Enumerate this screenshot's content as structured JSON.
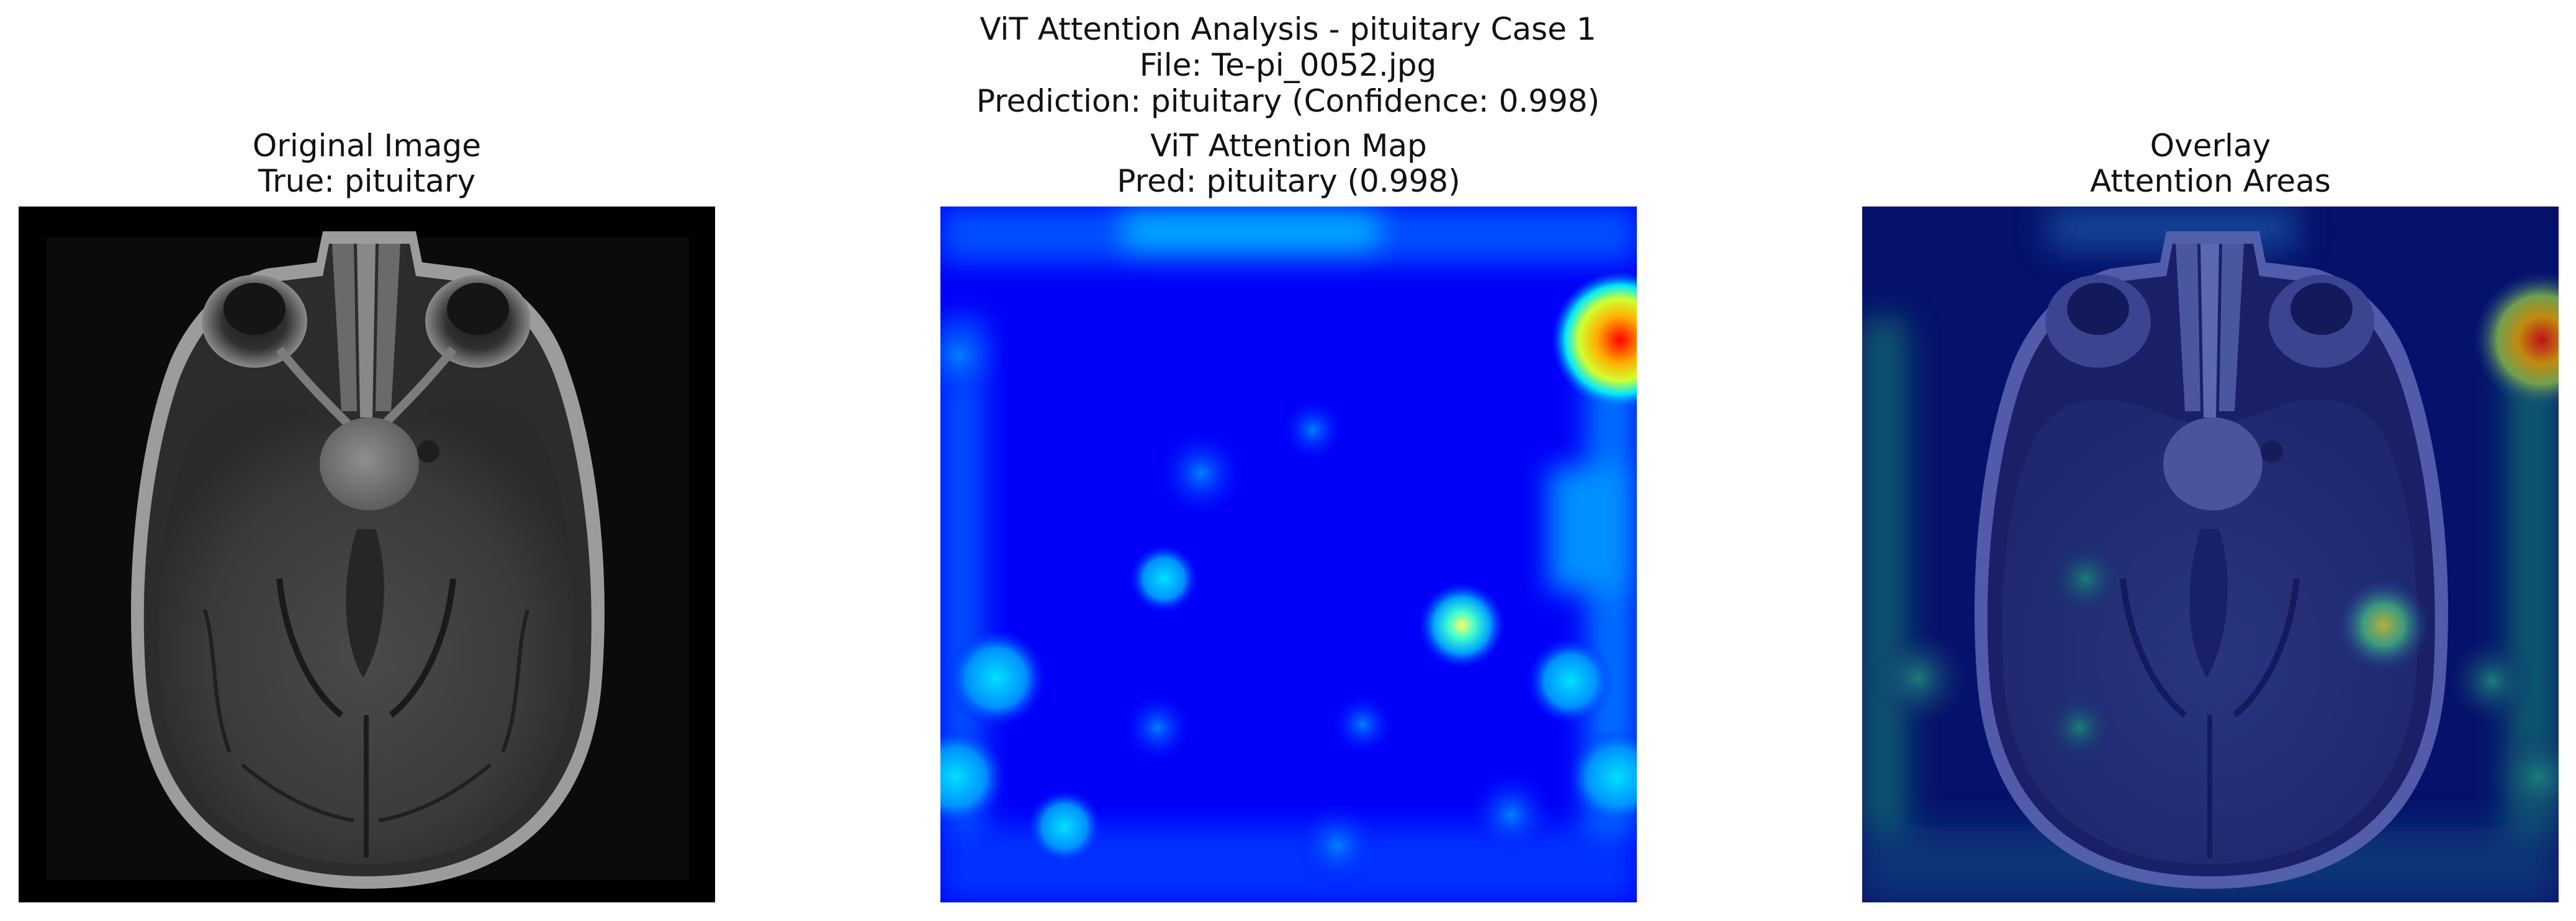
{
  "figure": {
    "title_line1": "ViT Attention Analysis - pituitary Case 1",
    "title_line2": "File: Te-pi_0052.jpg",
    "title_line3": "Prediction: pituitary (Confidence: 0.998)"
  },
  "panels": [
    {
      "title_line1": "Original Image",
      "title_line2": "True: pituitary"
    },
    {
      "title_line1": "ViT Attention Map",
      "title_line2": "Pred: pituitary (0.998)"
    },
    {
      "title_line1": "Overlay",
      "title_line2": "Attention Areas"
    }
  ],
  "colors": {
    "background": "#ffffff",
    "text": "#111111",
    "mri_background": "#000000",
    "attention_low": "#0000ff",
    "attention_mid": "#00bfff",
    "attention_high": "#ff0000",
    "overlay_tint": "#0a1a7a"
  },
  "colormap": "jet"
}
